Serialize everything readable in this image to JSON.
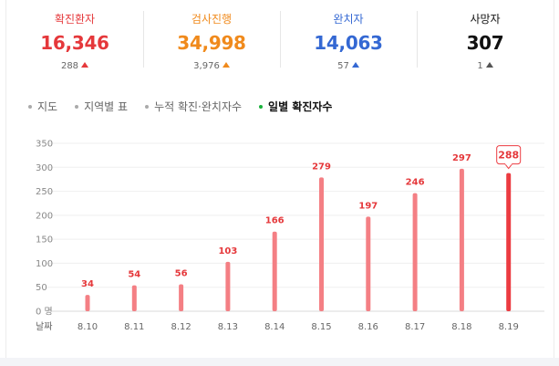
{
  "stats": [
    {
      "label": "확진환자",
      "value": "16,346",
      "delta": "288",
      "color": "#e5383b",
      "delta_color": "#e5383b"
    },
    {
      "label": "검사진행",
      "value": "34,998",
      "delta": "3,976",
      "color": "#f08a1c",
      "delta_color": "#f08a1c"
    },
    {
      "label": "완치자",
      "value": "14,063",
      "delta": "57",
      "color": "#3468d3",
      "delta_color": "#3468d3"
    },
    {
      "label": "사망자",
      "value": "307",
      "delta": "1",
      "color": "#111111",
      "delta_color": "#555555"
    }
  ],
  "tabs": [
    {
      "label": "지도",
      "active": false
    },
    {
      "label": "지역별 표",
      "active": false
    },
    {
      "label": "누적 확진·완치자수",
      "active": false
    },
    {
      "label": "일별 확진자수",
      "active": true
    }
  ],
  "chart_data": {
    "type": "bar",
    "x_axis_title": "날짜",
    "categories": [
      "8.10",
      "8.11",
      "8.12",
      "8.13",
      "8.14",
      "8.15",
      "8.16",
      "8.17",
      "8.18",
      "8.19"
    ],
    "values": [
      34,
      54,
      56,
      103,
      166,
      279,
      197,
      246,
      297,
      288
    ],
    "y_ticks": [
      350,
      300,
      250,
      200,
      150,
      100,
      50,
      0
    ],
    "y_unit": "명",
    "ylim": [
      0,
      350
    ],
    "highlight_index": 9,
    "bar_color": "#f47f84",
    "highlight_color": "#ec3b41",
    "label_color": "#e5383b",
    "grid": true
  }
}
